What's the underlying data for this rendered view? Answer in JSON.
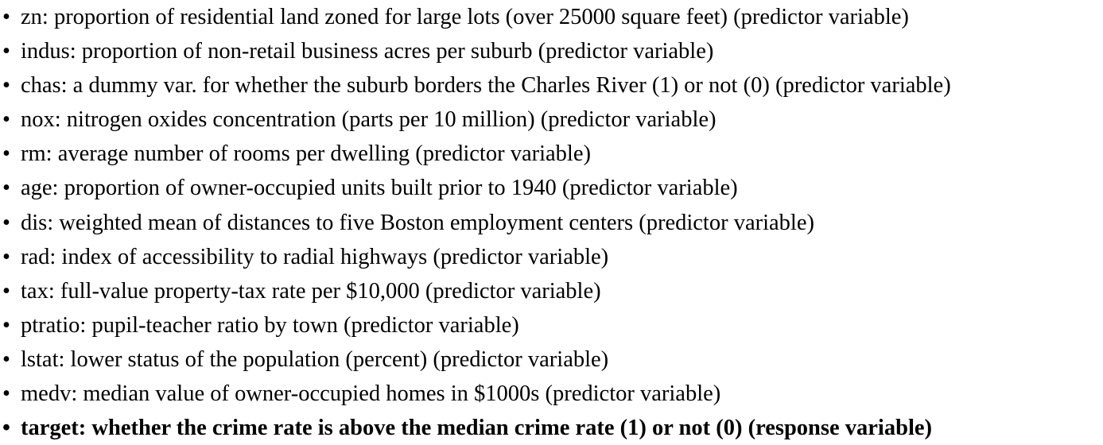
{
  "variables": [
    {
      "bullet": "•",
      "text": "zn: proportion of residential land zoned for large lots (over 25000 square feet) (predictor variable)"
    },
    {
      "bullet": "•",
      "text": "indus: proportion of non-retail business acres per suburb (predictor variable)"
    },
    {
      "bullet": "•",
      "text": "chas: a dummy var. for whether the suburb borders the Charles River (1) or not (0) (predictor variable)"
    },
    {
      "bullet": "•",
      "text": "nox: nitrogen oxides concentration (parts per 10 million) (predictor variable)"
    },
    {
      "bullet": "•",
      "text": "rm: average number of rooms per dwelling (predictor variable)"
    },
    {
      "bullet": "•",
      "text": "age: proportion of owner-occupied units built prior to 1940 (predictor variable)"
    },
    {
      "bullet": "•",
      "text": "dis: weighted mean of distances to five Boston employment centers (predictor variable)"
    },
    {
      "bullet": "•",
      "text": "rad: index of accessibility to radial highways (predictor variable)"
    },
    {
      "bullet": "•",
      "text": "tax: full-value property-tax rate per $10,000 (predictor variable)"
    },
    {
      "bullet": "•",
      "text": "ptratio: pupil-teacher ratio by town (predictor variable)"
    },
    {
      "bullet": "•",
      "text": "lstat: lower status of the population (percent) (predictor variable)"
    },
    {
      "bullet": "•",
      "text": "medv: median value of owner-occupied homes in $1000s (predictor variable)"
    },
    {
      "bullet": "•",
      "text": "target: whether the crime rate is above the median crime rate (1) or not (0) (response variable)"
    }
  ]
}
